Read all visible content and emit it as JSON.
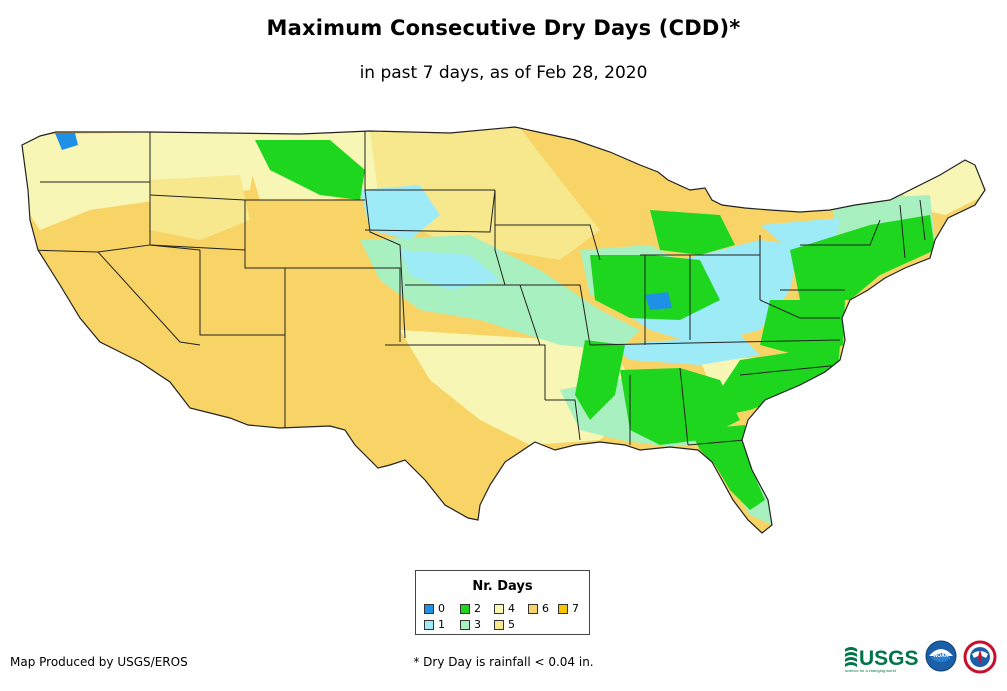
{
  "title": "Maximum Consecutive Dry Days (CDD)*",
  "subtitle": "in past 7 days, as of Feb 28, 2020",
  "legend": {
    "title": "Nr. Days",
    "items": [
      {
        "label": "0",
        "color": "#1e90e6"
      },
      {
        "label": "1",
        "color": "#9eebf8"
      },
      {
        "label": "2",
        "color": "#1fd61f"
      },
      {
        "label": "3",
        "color": "#a8f0bf"
      },
      {
        "label": "4",
        "color": "#f7f6b4"
      },
      {
        "label": "5",
        "color": "#f7e88d"
      },
      {
        "label": "6",
        "color": "#f8d466"
      },
      {
        "label": "7",
        "color": "#f6c400"
      }
    ]
  },
  "credit": "Map Produced by USGS/EROS",
  "footnote": "* Dry Day is rainfall < 0.04 in.",
  "logos": {
    "usgs": "USGS",
    "usgs_tagline": "science for a changing world",
    "noaa": "NOAA"
  },
  "map": {
    "region": "contiguous-united-states",
    "base_color": "#f8d466",
    "border_color": "#222222"
  }
}
